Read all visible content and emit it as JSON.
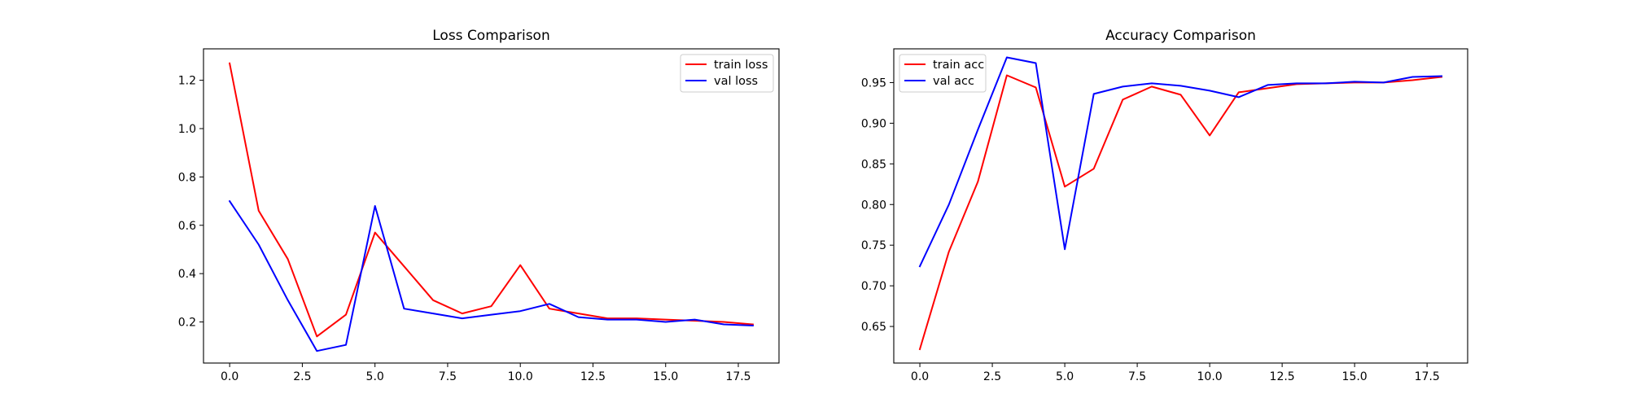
{
  "chart_data": [
    {
      "type": "line",
      "title": "Loss Comparison",
      "xlabel": "",
      "ylabel": "",
      "x": [
        0,
        1,
        2,
        3,
        4,
        5,
        6,
        7,
        8,
        9,
        10,
        11,
        12,
        13,
        14,
        15,
        16,
        17,
        18
      ],
      "xlim": [
        -0.9,
        18.9
      ],
      "ylim": [
        0.03,
        1.33
      ],
      "xticks": [
        0.0,
        2.5,
        5.0,
        7.5,
        10.0,
        12.5,
        15.0,
        17.5
      ],
      "xtick_labels": [
        "0.0",
        "2.5",
        "5.0",
        "7.5",
        "10.0",
        "12.5",
        "15.0",
        "17.5"
      ],
      "yticks": [
        0.2,
        0.4,
        0.6,
        0.8,
        1.0,
        1.2
      ],
      "ytick_labels": [
        "0.2",
        "0.4",
        "0.6",
        "0.8",
        "1.0",
        "1.2"
      ],
      "grid": false,
      "legend_position": "top-right",
      "series": [
        {
          "name": "train loss",
          "color": "#ff0000",
          "values": [
            1.27,
            0.66,
            0.46,
            0.14,
            0.23,
            0.57,
            0.43,
            0.29,
            0.235,
            0.265,
            0.435,
            0.255,
            0.235,
            0.215,
            0.215,
            0.21,
            0.205,
            0.2,
            0.19
          ]
        },
        {
          "name": "val loss",
          "color": "#0000ff",
          "values": [
            0.7,
            0.52,
            0.29,
            0.08,
            0.105,
            0.68,
            0.255,
            0.235,
            0.215,
            0.23,
            0.245,
            0.275,
            0.22,
            0.21,
            0.21,
            0.2,
            0.21,
            0.19,
            0.185
          ]
        }
      ]
    },
    {
      "type": "line",
      "title": "Accuracy Comparison",
      "xlabel": "",
      "ylabel": "",
      "x": [
        0,
        1,
        2,
        3,
        4,
        5,
        6,
        7,
        8,
        9,
        10,
        11,
        12,
        13,
        14,
        15,
        16,
        17,
        18
      ],
      "xlim": [
        -0.9,
        18.9
      ],
      "ylim": [
        0.605,
        0.9915
      ],
      "xticks": [
        0.0,
        2.5,
        5.0,
        7.5,
        10.0,
        12.5,
        15.0,
        17.5
      ],
      "xtick_labels": [
        "0.0",
        "2.5",
        "5.0",
        "7.5",
        "10.0",
        "12.5",
        "15.0",
        "17.5"
      ],
      "yticks": [
        0.65,
        0.7,
        0.75,
        0.8,
        0.85,
        0.9,
        0.95
      ],
      "ytick_labels": [
        "0.65",
        "0.70",
        "0.75",
        "0.80",
        "0.85",
        "0.90",
        "0.95"
      ],
      "grid": false,
      "legend_position": "top-left",
      "series": [
        {
          "name": "train acc",
          "color": "#ff0000",
          "values": [
            0.622,
            0.742,
            0.828,
            0.959,
            0.944,
            0.822,
            0.844,
            0.929,
            0.945,
            0.935,
            0.885,
            0.938,
            0.943,
            0.948,
            0.949,
            0.95,
            0.95,
            0.953,
            0.957
          ]
        },
        {
          "name": "val acc",
          "color": "#0000ff",
          "values": [
            0.724,
            0.8,
            0.892,
            0.981,
            0.974,
            0.745,
            0.936,
            0.945,
            0.949,
            0.946,
            0.94,
            0.932,
            0.947,
            0.949,
            0.949,
            0.951,
            0.95,
            0.957,
            0.958
          ]
        }
      ]
    }
  ]
}
